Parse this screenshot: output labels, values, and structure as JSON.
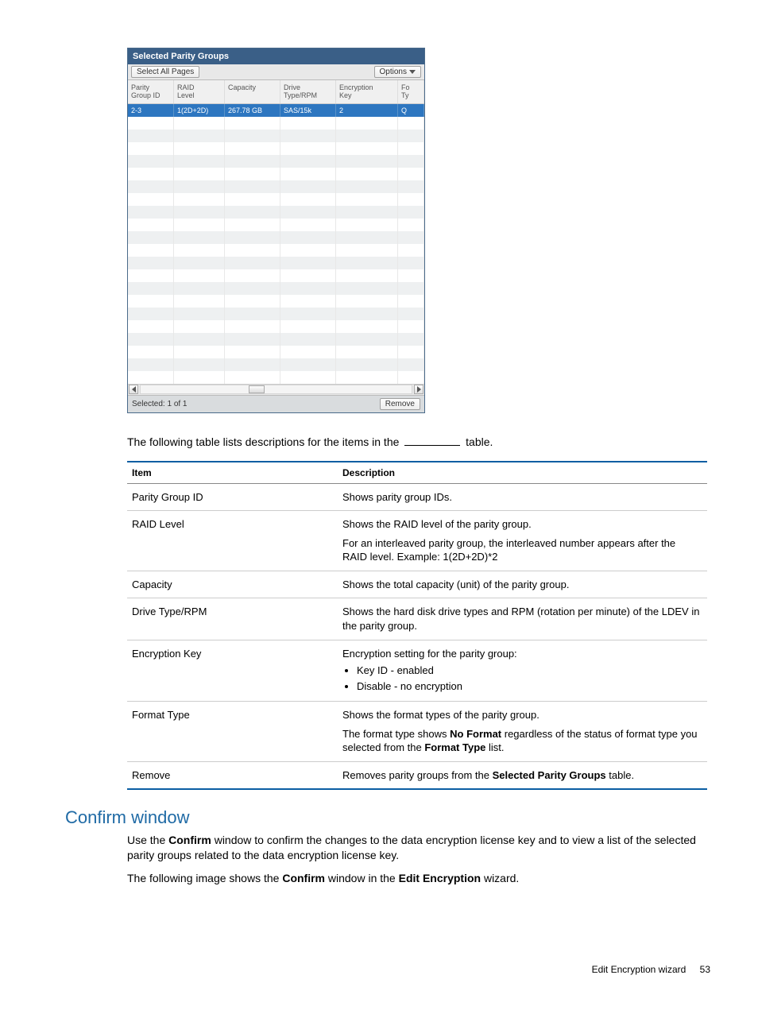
{
  "spg": {
    "title": "Selected Parity Groups",
    "select_all_label": "Select All Pages",
    "options_label": "Options",
    "columns": {
      "parity_group_id": "Parity\nGroup ID",
      "raid_level": "RAID\nLevel",
      "capacity": "Capacity",
      "drive_type": "Drive\nType/RPM",
      "encryption_key": "Encryption\nKey",
      "format_type": "Fo\nTy"
    },
    "selected_row": {
      "parity_group_id": "2-3",
      "raid_level": "1(2D+2D)",
      "capacity": "267.78 GB",
      "drive_type": "SAS/15k",
      "encryption_key": "2",
      "format_type": "Q"
    },
    "empty_row_count": 21,
    "footer_text": "Selected: 1   of  1",
    "remove_label": "Remove",
    "colors": {
      "titlebar_bg": "#3a5f87",
      "selected_row_bg": "#2d76c0",
      "accent_border": "#0b5ea3",
      "alt_row_bg": "#eef0f1"
    }
  },
  "intro_text_before": "The following table lists descriptions for the items in the ",
  "intro_text_after": " table.",
  "desc_table": {
    "headers": {
      "item": "Item",
      "description": "Description"
    },
    "rows": [
      {
        "item": "Parity Group ID",
        "desc_html": "Shows parity group IDs."
      },
      {
        "item": "RAID Level",
        "desc_html": "Shows the RAID level of the parity group.<div class=\"para-gap\">For an interleaved parity group, the interleaved number appears after the RAID level. Example: 1(2D+2D)*2</div>"
      },
      {
        "item": "Capacity",
        "desc_html": "Shows the total capacity (unit) of the parity group."
      },
      {
        "item": "Drive Type/RPM",
        "desc_html": "Shows the hard disk drive types and RPM (rotation per minute) of the LDEV in the parity group."
      },
      {
        "item": "Encryption Key",
        "desc_html": "Encryption setting for the parity group:<ul><li>Key ID - enabled</li><li>Disable - no encryption</li></ul>"
      },
      {
        "item": "Format Type",
        "desc_html": "Shows the format types of the parity group.<div class=\"para-gap\">The format type shows <b>No Format</b> regardless of the status of format type you selected from the <b>Format Type</b> list.</div>"
      },
      {
        "item": "Remove",
        "desc_html": "Removes parity groups from the <b>Selected Parity Groups</b> table."
      }
    ]
  },
  "confirm_section": {
    "heading": "Confirm window",
    "para1_html": "Use the <b>Confirm</b> window to confirm the changes to the data encryption license key and to view a list of the selected parity groups related to the data encryption license key.",
    "para2_html": "The following image shows the <b>Confirm</b> window in the <b>Edit Encryption</b> wizard."
  },
  "footer": {
    "text": "Edit Encryption wizard",
    "page": "53"
  }
}
